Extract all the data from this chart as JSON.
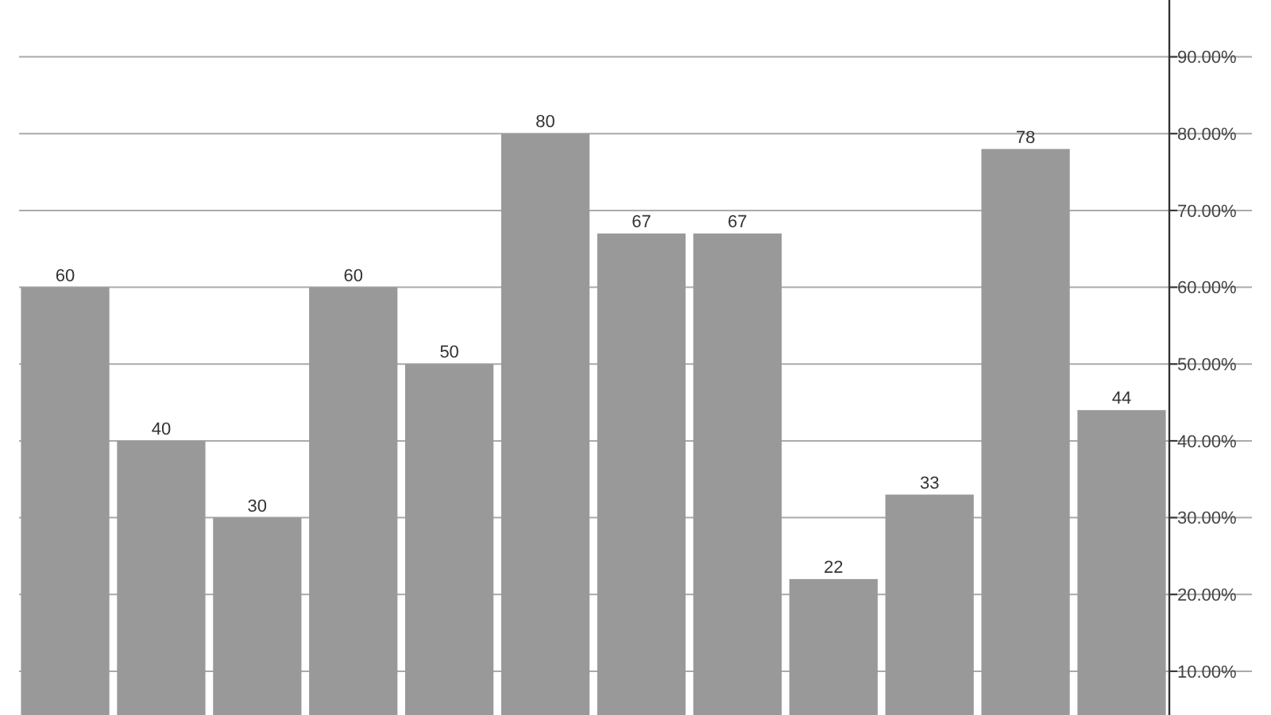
{
  "chart_data": {
    "type": "bar",
    "categories": [
      null,
      null,
      null,
      null,
      null,
      null,
      null,
      null,
      null,
      null,
      null,
      null
    ],
    "values": [
      60,
      40,
      30,
      60,
      50,
      80,
      67,
      67,
      22,
      33,
      78,
      44
    ],
    "color": "#999999",
    "data_labels": true,
    "grid": "y",
    "ylim": [
      4.3,
      97.4
    ],
    "yticks": [
      {
        "value": 10,
        "label": "10.00%"
      },
      {
        "value": 20,
        "label": "20.00%"
      },
      {
        "value": 30,
        "label": "30.00%"
      },
      {
        "value": 40,
        "label": "40.00%"
      },
      {
        "value": 50,
        "label": "50.00%"
      },
      {
        "value": 60,
        "label": "60.00%"
      },
      {
        "value": 70,
        "label": "70.00%"
      },
      {
        "value": 80,
        "label": "80.00%"
      },
      {
        "value": 90,
        "label": "90.00%"
      }
    ]
  }
}
